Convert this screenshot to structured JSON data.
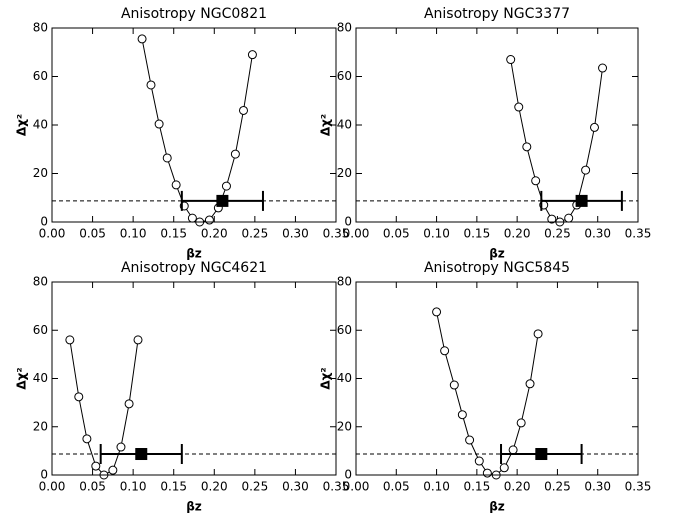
{
  "chart_data": [
    {
      "type": "scatter",
      "title": "Anisotropy NGC0821",
      "x_label": "βz",
      "y_label": "Δχ²",
      "x": [
        0.111,
        0.122,
        0.132,
        0.142,
        0.153,
        0.163,
        0.173,
        0.182,
        0.194,
        0.205,
        0.215,
        0.226,
        0.236,
        0.247
      ],
      "values": [
        75.5,
        56.5,
        40.4,
        26.4,
        15.3,
        6.6,
        1.6,
        0,
        0.8,
        5.8,
        14.8,
        28,
        46,
        69
      ],
      "best_fit": {
        "x": 0.21,
        "y": 8.7,
        "xerr": 0.05
      },
      "hline": 8.7,
      "xlim": [
        0,
        0.35
      ],
      "ylim": [
        0,
        80
      ],
      "xticks": [
        {
          "value": 0,
          "label": "0.00"
        },
        0.05,
        {
          "value": 0.1,
          "label": "0.10"
        },
        0.15,
        {
          "value": 0.2,
          "label": "0.20"
        },
        0.25,
        {
          "value": 0.3,
          "label": "0.30"
        },
        0.35
      ],
      "yticks": [
        0,
        20,
        40,
        60,
        80
      ]
    },
    {
      "type": "scatter",
      "title": "Anisotropy NGC3377",
      "x_label": "βz",
      "y_label": "Δχ²",
      "x": [
        0.192,
        0.202,
        0.212,
        0.223,
        0.233,
        0.243,
        0.253,
        0.264,
        0.274,
        0.285,
        0.296,
        0.306
      ],
      "values": [
        67,
        47.4,
        31,
        17,
        7,
        1.2,
        0,
        1.6,
        7,
        21.4,
        39,
        63.5
      ],
      "best_fit": {
        "x": 0.28,
        "y": 8.7,
        "xerr": 0.05
      },
      "hline": 8.7,
      "xlim": [
        0,
        0.35
      ],
      "ylim": [
        0,
        80
      ],
      "xticks": [
        {
          "value": 0,
          "label": "0.00"
        },
        0.05,
        {
          "value": 0.1,
          "label": "0.10"
        },
        0.15,
        {
          "value": 0.2,
          "label": "0.20"
        },
        0.25,
        {
          "value": 0.3,
          "label": "0.30"
        },
        0.35
      ],
      "yticks": [
        0,
        20,
        40,
        60,
        80
      ]
    },
    {
      "type": "scatter",
      "title": "Anisotropy NGC4621",
      "x_label": "βz",
      "y_label": "Δχ²",
      "x": [
        0.022,
        0.033,
        0.043,
        0.054,
        0.064,
        0.075,
        0.085,
        0.095,
        0.106
      ],
      "values": [
        56,
        32.4,
        15,
        3.7,
        0,
        2,
        11.6,
        29.5,
        56
      ],
      "best_fit": {
        "x": 0.11,
        "y": 8.7,
        "xerr": 0.05
      },
      "hline": 8.7,
      "xlim": [
        0,
        0.35
      ],
      "ylim": [
        0,
        80
      ],
      "xticks": [
        {
          "value": 0,
          "label": "0.00"
        },
        0.05,
        {
          "value": 0.1,
          "label": "0.10"
        },
        0.15,
        {
          "value": 0.2,
          "label": "0.20"
        },
        0.25,
        {
          "value": 0.3,
          "label": "0.30"
        },
        0.35
      ],
      "yticks": [
        0,
        20,
        40,
        60,
        80
      ]
    },
    {
      "type": "scatter",
      "title": "Anisotropy NGC5845",
      "x_label": "βz",
      "y_label": "Δχ²",
      "x": [
        0.1,
        0.11,
        0.122,
        0.132,
        0.141,
        0.153,
        0.163,
        0.174,
        0.184,
        0.195,
        0.205,
        0.216,
        0.226
      ],
      "values": [
        67.6,
        51.5,
        37.3,
        25,
        14.5,
        5.8,
        0.8,
        0,
        3,
        10.4,
        21.6,
        37.8,
        58.5
      ],
      "best_fit": {
        "x": 0.23,
        "y": 8.7,
        "xerr": 0.05
      },
      "hline": 8.7,
      "xlim": [
        0,
        0.35
      ],
      "ylim": [
        0,
        80
      ],
      "xticks": [
        {
          "value": 0,
          "label": "0.00"
        },
        0.05,
        {
          "value": 0.1,
          "label": "0.10"
        },
        0.15,
        {
          "value": 0.2,
          "label": "0.20"
        },
        0.25,
        {
          "value": 0.3,
          "label": "0.30"
        },
        0.35
      ],
      "yticks": [
        0,
        20,
        40,
        60,
        80
      ]
    }
  ]
}
